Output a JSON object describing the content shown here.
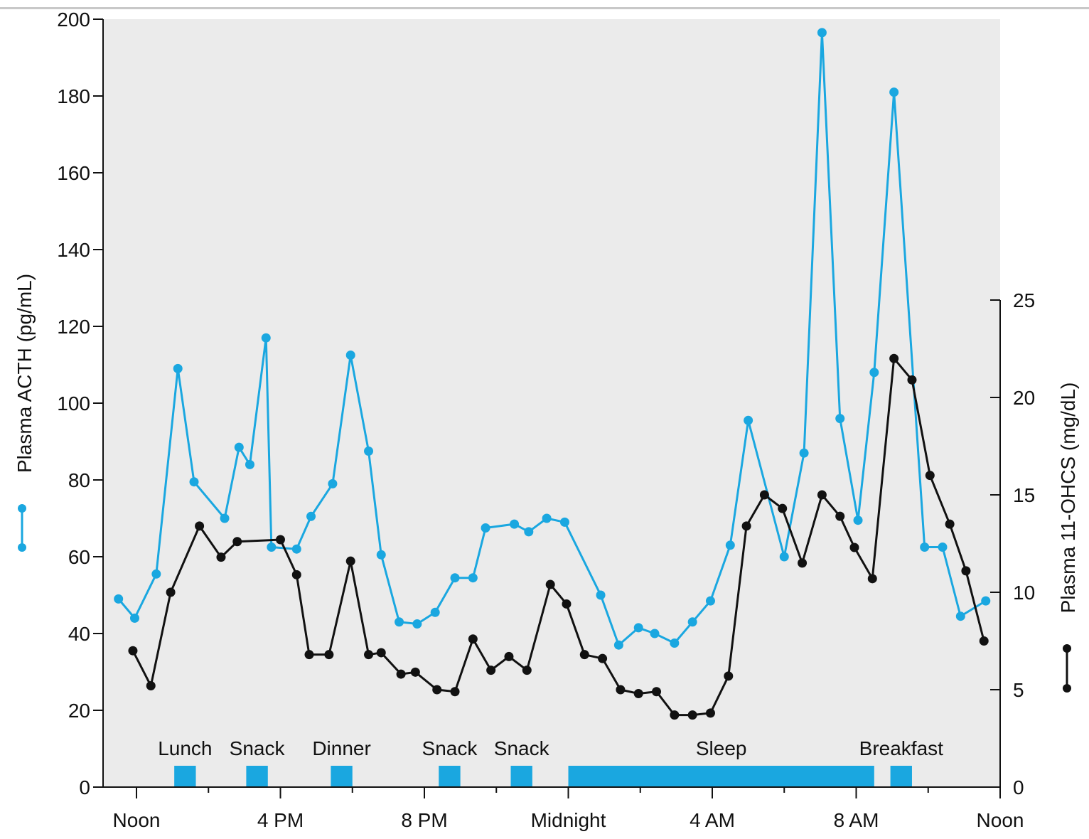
{
  "chart_data": {
    "type": "line",
    "colors": {
      "acth": "#1aa7e0",
      "ohcs": "#111111",
      "plot_bg": "#ebebeb",
      "event_bar": "#1aa7e0"
    },
    "x_axis": {
      "unit": "hours after noon",
      "range": [
        -0.5,
        24
      ],
      "ticks": [
        {
          "value": 0,
          "label": "Noon"
        },
        {
          "value": 4,
          "label": "4 PM"
        },
        {
          "value": 8,
          "label": "8 PM"
        },
        {
          "value": 12,
          "label": "Midnight"
        },
        {
          "value": 16,
          "label": "4 AM"
        },
        {
          "value": 20,
          "label": "8 AM"
        },
        {
          "value": 24,
          "label": "Noon"
        }
      ]
    },
    "y_left": {
      "label": "Plasma ACTH (pg/mL)",
      "range": [
        0,
        200
      ],
      "ticks": [
        0,
        20,
        40,
        60,
        80,
        100,
        120,
        140,
        160,
        180,
        200
      ]
    },
    "y_right": {
      "label": "Plasma 11-OHCS (mg/dL)",
      "range": [
        0,
        25
      ],
      "ticks": [
        0,
        5,
        10,
        15,
        20,
        25
      ]
    },
    "series": [
      {
        "name": "Plasma ACTH",
        "axis": "left",
        "x": [
          -0.5,
          -0.05,
          0.55,
          1.15,
          1.6,
          2.45,
          2.85,
          3.15,
          3.6,
          3.75,
          4.45,
          4.85,
          5.45,
          5.95,
          6.45,
          6.8,
          7.3,
          7.8,
          8.3,
          8.85,
          9.35,
          9.7,
          10.5,
          10.9,
          11.4,
          11.9,
          12.9,
          13.4,
          13.95,
          14.4,
          14.95,
          15.45,
          15.95,
          16.5,
          17.0,
          18.0,
          18.55,
          19.05,
          19.55,
          20.05,
          20.5,
          21.05,
          21.9,
          22.4,
          22.9,
          23.6
        ],
        "values": [
          49,
          44,
          55.5,
          109,
          79.5,
          70,
          88.5,
          84,
          117,
          62.5,
          62,
          70.5,
          79,
          112.5,
          87.5,
          60.5,
          43,
          42.5,
          45.5,
          54.5,
          54.5,
          67.5,
          68.5,
          66.5,
          70,
          69,
          50,
          37,
          41.5,
          40,
          37.5,
          43,
          48.5,
          63,
          95.5,
          60,
          87,
          196.5,
          96,
          69.5,
          108,
          181,
          62.5,
          62.5,
          44.5,
          48.5
        ]
      },
      {
        "name": "Plasma 11-OHCS",
        "axis": "right",
        "x": [
          -0.1,
          0.4,
          0.95,
          1.75,
          2.35,
          2.8,
          4.0,
          4.45,
          4.8,
          5.35,
          5.95,
          6.45,
          6.8,
          7.35,
          7.75,
          8.35,
          8.85,
          9.35,
          9.85,
          10.35,
          10.85,
          11.5,
          11.95,
          12.45,
          12.95,
          13.45,
          13.95,
          14.45,
          14.95,
          15.45,
          15.95,
          16.45,
          16.95,
          17.45,
          17.95,
          18.5,
          19.05,
          19.55,
          19.95,
          20.45,
          21.05,
          21.55,
          22.05,
          22.6,
          23.05,
          23.55
        ],
        "values": [
          7,
          5.2,
          10,
          13.4,
          11.8,
          12.6,
          12.7,
          10.9,
          6.8,
          6.8,
          11.6,
          6.8,
          6.9,
          5.8,
          5.9,
          5.0,
          4.9,
          7.6,
          6.0,
          6.7,
          6.0,
          10.4,
          9.4,
          6.8,
          6.6,
          5.0,
          4.8,
          4.9,
          3.7,
          3.7,
          3.8,
          5.7,
          13.4,
          15.0,
          14.3,
          11.5,
          15.0,
          13.9,
          12.3,
          10.7,
          22.0,
          20.9,
          16.0,
          13.5,
          11.1,
          7.5
        ]
      }
    ],
    "events": [
      {
        "label": "Lunch",
        "start": 1.05,
        "end": 1.65
      },
      {
        "label": "Snack",
        "start": 3.05,
        "end": 3.65
      },
      {
        "label": "Dinner",
        "start": 5.4,
        "end": 6.0
      },
      {
        "label": "Snack",
        "start": 8.4,
        "end": 9.0
      },
      {
        "label": "Snack",
        "start": 10.4,
        "end": 11.0
      },
      {
        "label": "Sleep",
        "start": 12.0,
        "end": 20.5
      },
      {
        "label": "Breakfast",
        "start": 20.95,
        "end": 21.55
      }
    ],
    "grid": false,
    "legend": "axis-title markers (left: ACTH, right: 11-OHCS)"
  }
}
